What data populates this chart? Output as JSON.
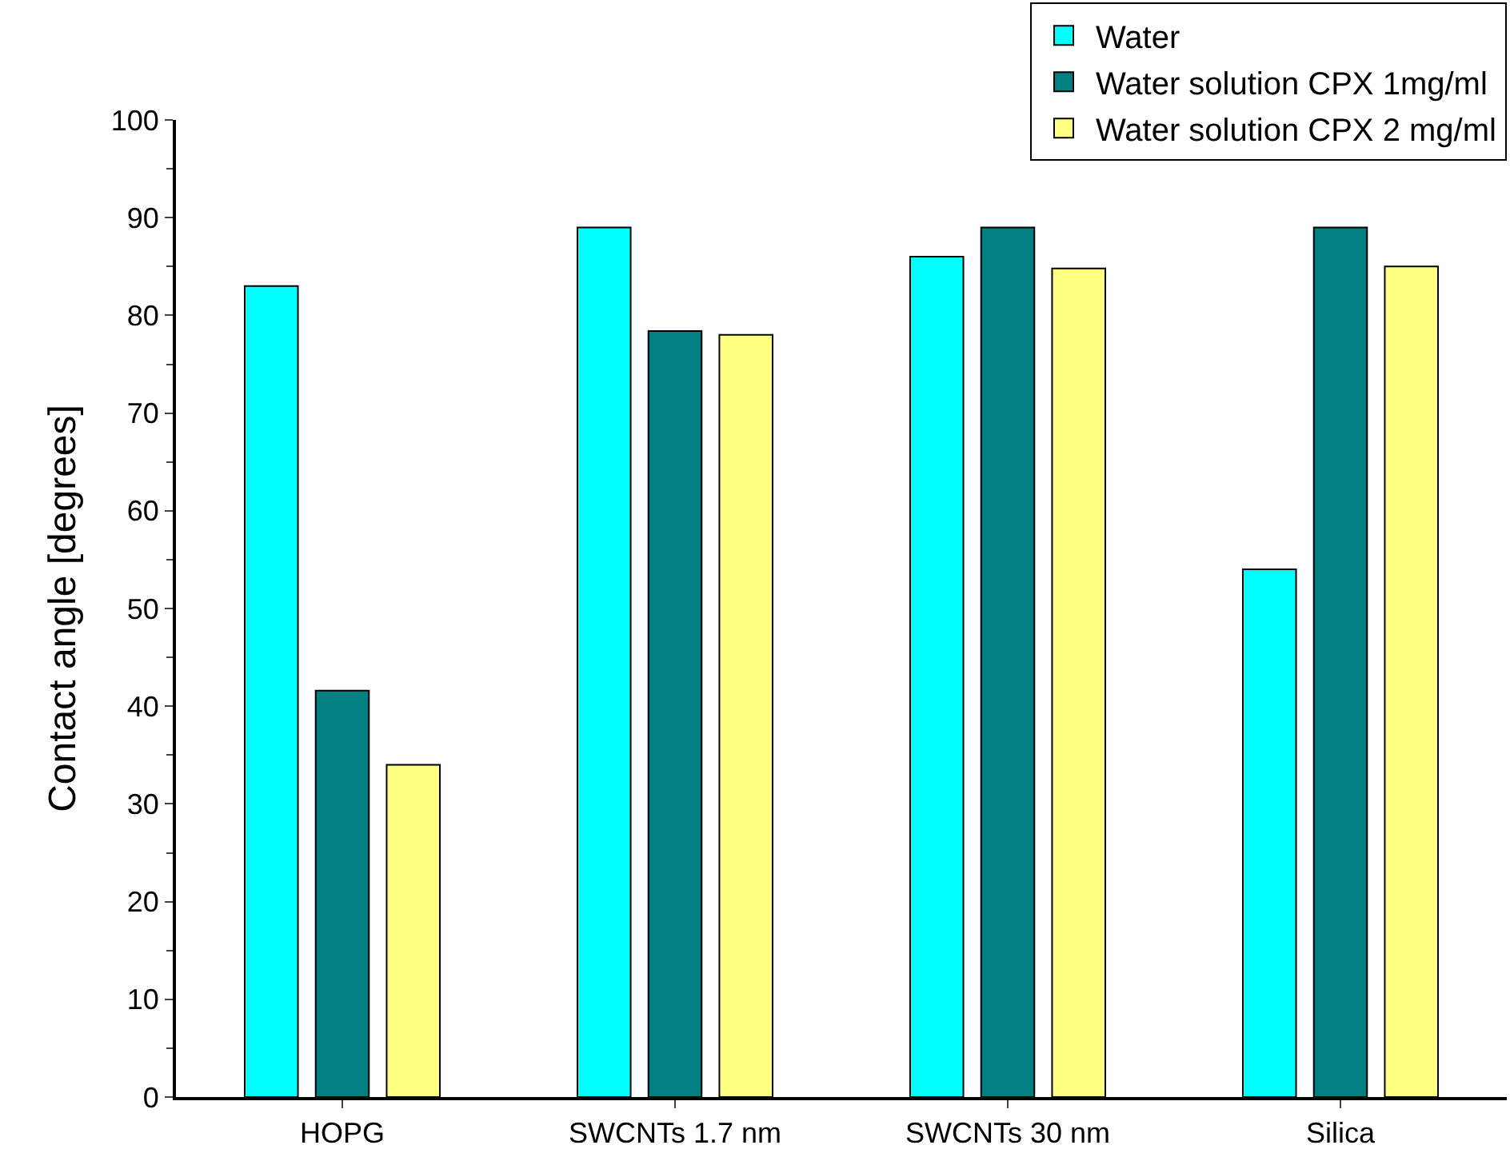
{
  "chart_data": {
    "type": "bar",
    "ylabel": "Contact angle [degrees]",
    "categories": [
      "HOPG",
      "SWCNTs 1.7 nm",
      "SWCNTs 30 nm",
      "Silica"
    ],
    "series": [
      {
        "name": "Water",
        "color": "#00ffff",
        "values": [
          83,
          89,
          86,
          54
        ]
      },
      {
        "name": "Water solution CPX 1mg/ml",
        "color": "#008080",
        "values": [
          41.6,
          78.4,
          89,
          89
        ]
      },
      {
        "name": "Water solution CPX 2 mg/ml",
        "color": "#ffff80",
        "values": [
          34,
          78,
          84.8,
          85
        ]
      }
    ],
    "ylim": [
      0,
      100
    ],
    "yticks": [
      0,
      10,
      20,
      30,
      40,
      50,
      60,
      70,
      80,
      90,
      100
    ],
    "legend": "top right"
  }
}
